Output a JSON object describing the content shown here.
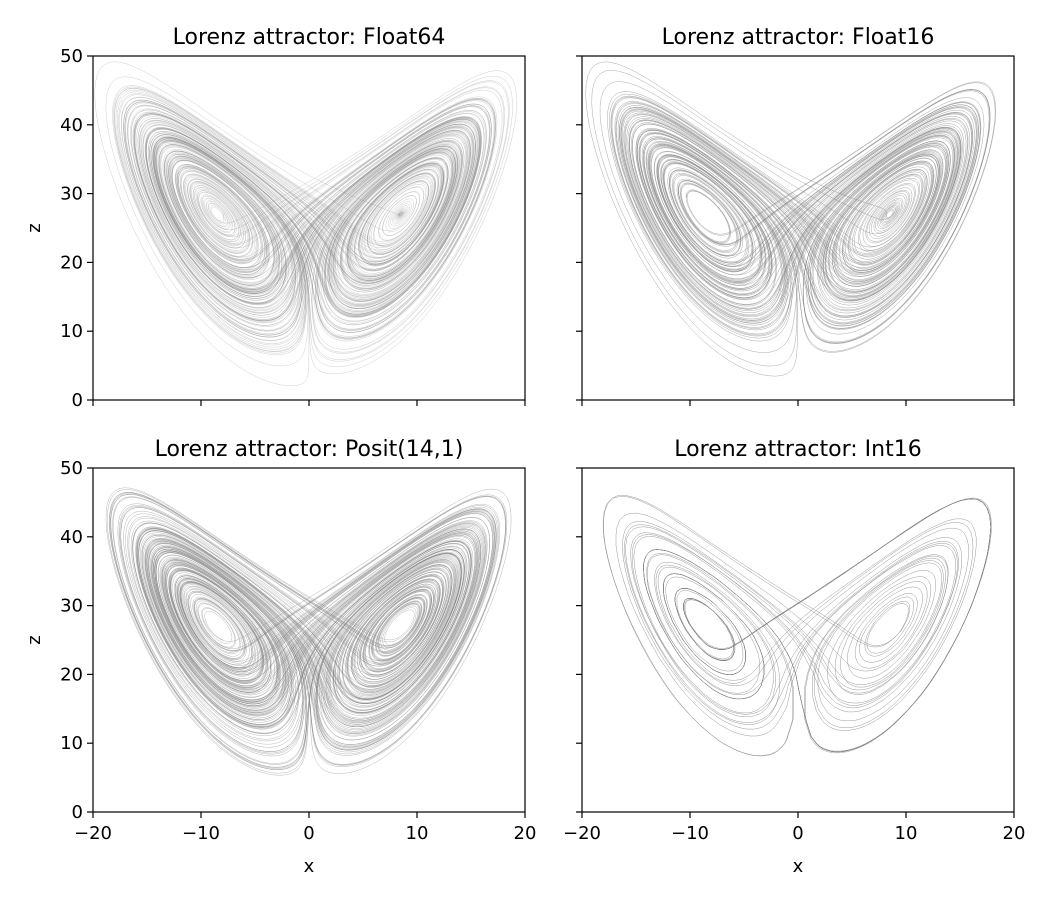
{
  "chart_data": [
    {
      "type": "line",
      "title": "Lorenz attractor: Float64",
      "xlabel": "",
      "ylabel": "z",
      "xlim": [
        -20,
        20
      ],
      "ylim": [
        0,
        50
      ],
      "x_ticks": [
        -20,
        -10,
        0,
        10,
        20
      ],
      "y_ticks": [
        0,
        10,
        20,
        30,
        40,
        50
      ],
      "x_tick_labels_visible": false,
      "y_tick_labels_visible": true,
      "grid": false,
      "line_color": "#808080",
      "density": "very-dense",
      "x": [
        0.0,
        8.5,
        16.0,
        14.0,
        8.0,
        6.5,
        8.5,
        11.0,
        8.0,
        -1.0,
        -9.0,
        -16.0,
        -14.0,
        -9.0,
        -6.5,
        -8.5,
        -11.0,
        -8.0,
        0.0
      ],
      "y": [
        28.0,
        38.0,
        43.0,
        20.0,
        12.0,
        24.0,
        30.0,
        26.0,
        14.0,
        5.0,
        12.0,
        42.0,
        20.0,
        12.0,
        24.0,
        30.0,
        26.0,
        14.0,
        5.0
      ]
    },
    {
      "type": "line",
      "title": "Lorenz attractor: Float16",
      "xlabel": "",
      "ylabel": "",
      "xlim": [
        -20,
        20
      ],
      "ylim": [
        0,
        50
      ],
      "x_ticks": [
        -20,
        -10,
        0,
        10,
        20
      ],
      "y_ticks": [
        0,
        10,
        20,
        30,
        40,
        50
      ],
      "x_tick_labels_visible": false,
      "y_tick_labels_visible": false,
      "grid": false,
      "line_color": "#808080",
      "density": "dense",
      "x": [
        0.0,
        8.5,
        17.0,
        14.0,
        8.0,
        6.5,
        8.5,
        11.0,
        8.0,
        -1.0,
        -9.0,
        -17.0,
        -14.0,
        -9.0,
        -6.5,
        -8.5,
        -11.0,
        -8.0,
        0.0
      ],
      "y": [
        28.0,
        38.0,
        45.0,
        20.0,
        12.0,
        24.0,
        30.0,
        26.0,
        14.0,
        4.0,
        12.0,
        45.0,
        20.0,
        12.0,
        24.0,
        30.0,
        26.0,
        14.0,
        4.0
      ]
    },
    {
      "type": "line",
      "title": "Lorenz attractor: Posit(14,1)",
      "xlabel": "x",
      "ylabel": "z",
      "xlim": [
        -20,
        20
      ],
      "ylim": [
        0,
        50
      ],
      "x_ticks": [
        -20,
        -10,
        0,
        10,
        20
      ],
      "y_ticks": [
        0,
        10,
        20,
        30,
        40,
        50
      ],
      "x_tick_labels_visible": true,
      "y_tick_labels_visible": true,
      "grid": false,
      "line_color": "#808080",
      "density": "very-dense",
      "x": [
        0.0,
        8.5,
        17.0,
        14.0,
        8.0,
        6.5,
        8.5,
        11.0,
        8.0,
        -1.0,
        -9.0,
        -17.0,
        -14.0,
        -9.0,
        -6.5,
        -8.5,
        -11.0,
        -8.0,
        0.0
      ],
      "y": [
        28.0,
        38.0,
        44.0,
        20.0,
        12.0,
        24.0,
        30.0,
        26.0,
        14.0,
        5.0,
        12.0,
        44.0,
        20.0,
        12.0,
        24.0,
        30.0,
        26.0,
        14.0,
        5.0
      ]
    },
    {
      "type": "line",
      "title": "Lorenz attractor: Int16",
      "xlabel": "x",
      "ylabel": "",
      "xlim": [
        -20,
        20
      ],
      "ylim": [
        0,
        50
      ],
      "x_ticks": [
        -20,
        -10,
        0,
        10,
        20
      ],
      "y_ticks": [
        0,
        10,
        20,
        30,
        40,
        50
      ],
      "x_tick_labels_visible": true,
      "y_tick_labels_visible": false,
      "grid": false,
      "line_color": "#808080",
      "density": "sparse",
      "x": [
        0.0,
        8.5,
        16.0,
        14.0,
        8.0,
        4.0,
        6.0,
        10.0,
        8.0,
        -1.0,
        -9.0,
        -16.0,
        -14.0,
        -9.0,
        -5.0,
        -7.0,
        -11.0,
        -8.0,
        0.0
      ],
      "y": [
        25.0,
        35.0,
        42.0,
        18.0,
        11.0,
        18.0,
        27.0,
        30.0,
        14.0,
        5.0,
        12.0,
        43.0,
        18.0,
        11.0,
        18.0,
        27.0,
        30.0,
        14.0,
        5.0
      ]
    }
  ]
}
